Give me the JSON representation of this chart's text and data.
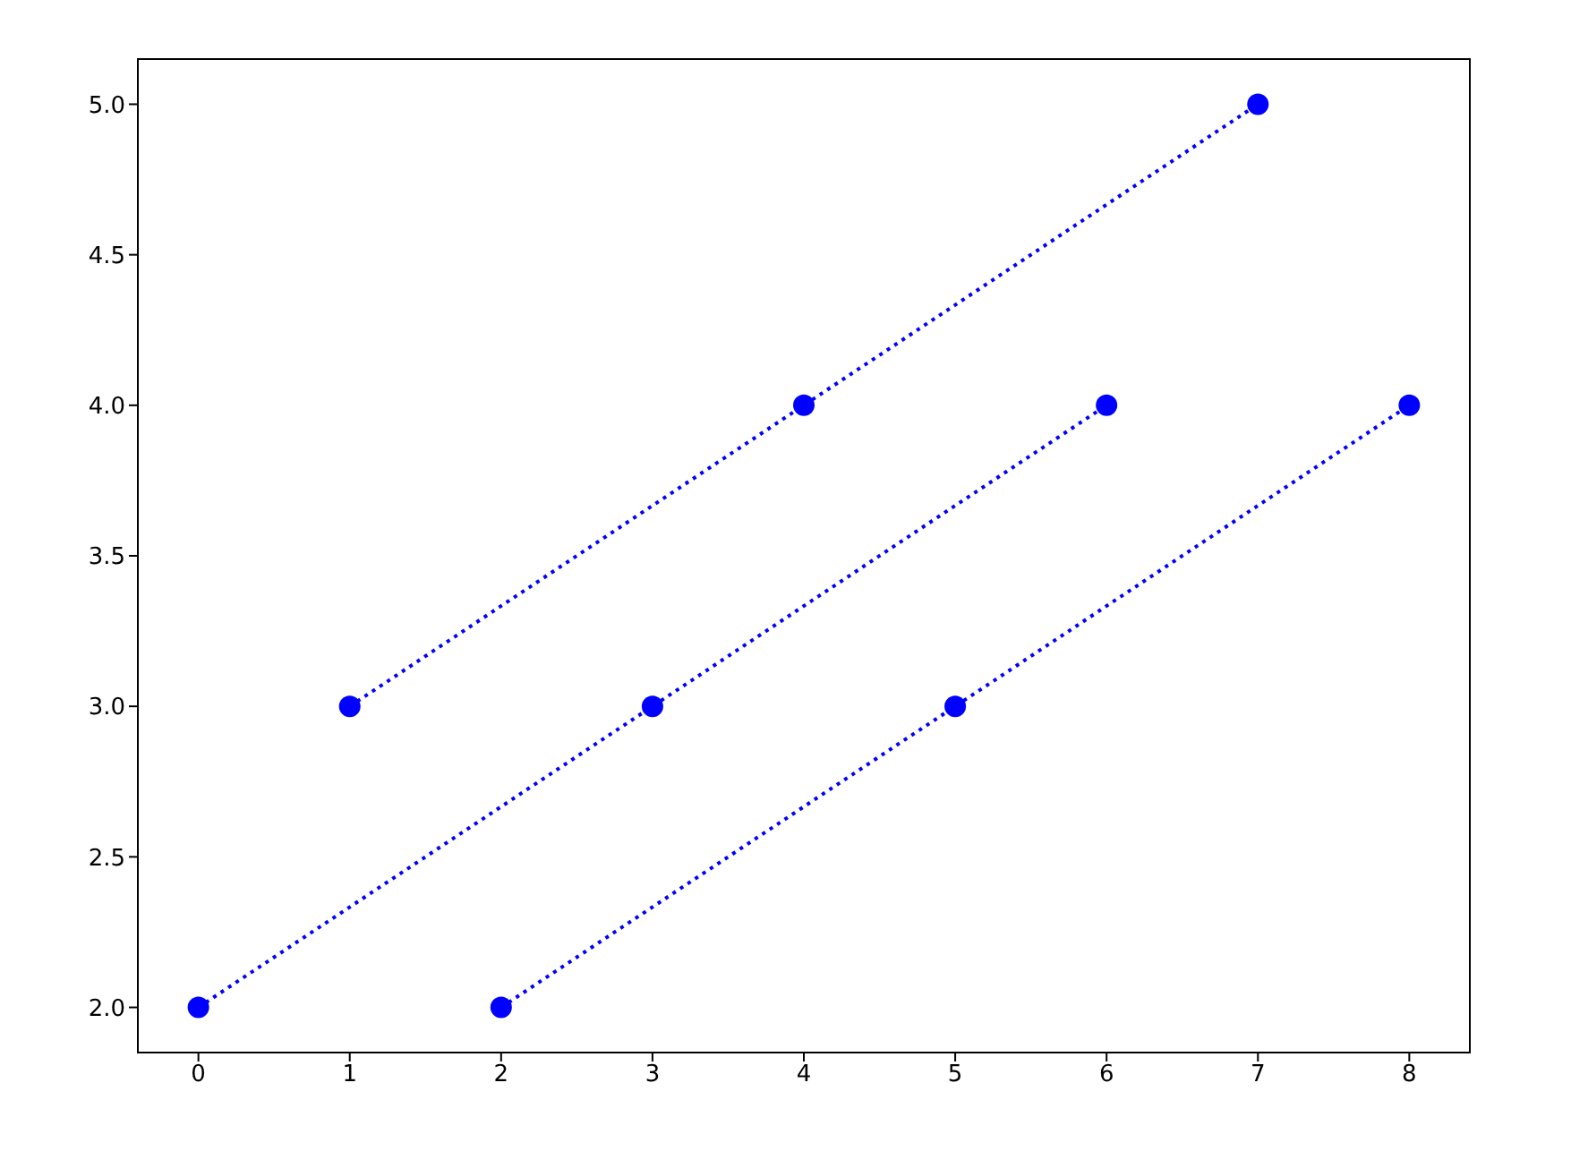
{
  "chart_data": {
    "type": "line",
    "series": [
      {
        "color": "#0000ff",
        "x": [
          0,
          3,
          6
        ],
        "values": [
          2,
          3,
          4
        ]
      },
      {
        "color": "#0000ff",
        "x": [
          1,
          4,
          7
        ],
        "values": [
          3,
          4,
          5
        ]
      },
      {
        "color": "#0000ff",
        "x": [
          2,
          5,
          8
        ],
        "values": [
          2,
          3,
          4
        ]
      }
    ],
    "xlim": [
      -0.4,
      8.4
    ],
    "xticks": [
      0,
      1,
      2,
      3,
      4,
      5,
      6,
      7,
      8
    ],
    "ylim": [
      1.85,
      5.15
    ],
    "yticks": [
      {
        "value": 2,
        "label": "2.0"
      },
      {
        "value": 2.5,
        "label": "2.5"
      },
      {
        "value": 3,
        "label": "3.0"
      },
      {
        "value": 3.5,
        "label": "3.5"
      },
      {
        "value": 4,
        "label": "4.0"
      },
      {
        "value": 4.5,
        "label": "4.5"
      },
      {
        "value": 5,
        "label": "5.0"
      }
    ],
    "grid": false,
    "legend": false,
    "marker": "circle",
    "line_style": "dotted"
  }
}
